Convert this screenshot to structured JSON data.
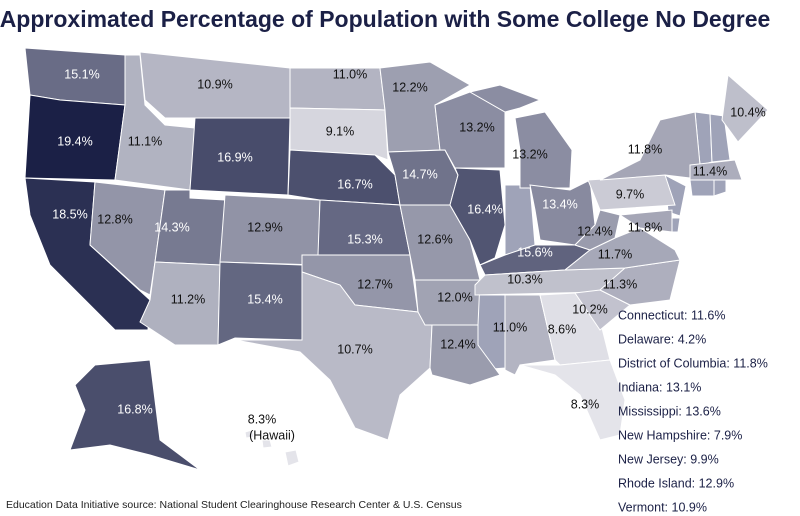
{
  "chart_data": {
    "type": "choropleth",
    "title": "Approximated Percentage of Population with Some College No Degree",
    "source": "Education Data Initiative source: National Student Clearinghouse Research Center & U.S. Census",
    "values": [
      15.1,
      19.4,
      18.5,
      11.1,
      12.8,
      10.9,
      16.9,
      14.3,
      11.2,
      12.9,
      15.4,
      11.0,
      9.1,
      16.7,
      15.3,
      12.7,
      10.7,
      12.2,
      14.7,
      12.6,
      12.0,
      12.4,
      13.2,
      16.4,
      13.2,
      13.4,
      15.6,
      10.3,
      11.0,
      8.6,
      8.3,
      10.2,
      11.3,
      11.7,
      12.4,
      11.8,
      9.7,
      11.8,
      10.4,
      11.4,
      16.8,
      8.3
    ],
    "value_labels": [
      "15.1%",
      "19.4%",
      "18.5%",
      "11.1%",
      "12.8%",
      "10.9%",
      "16.9%",
      "14.3%",
      "11.2%",
      "12.9%",
      "15.4%",
      "11.0%",
      "9.1%",
      "16.7%",
      "15.3%",
      "12.7%",
      "10.7%",
      "12.2%",
      "14.7%",
      "12.6%",
      "12.0%",
      "12.4%",
      "13.2%",
      "16.4%",
      "13.2%",
      "13.4%",
      "15.6%",
      "10.3%",
      "11.0%",
      "8.6%",
      "8.3%",
      "10.2%",
      "11.3%",
      "11.7%",
      "12.4%",
      "11.8%",
      "9.7%",
      "11.8%",
      "10.4%",
      "11.4%",
      "16.8%",
      "8.3%"
    ],
    "hawaii_label": "(Hawaii)",
    "color_range": [
      "#e4e4ea",
      "#1b2046"
    ],
    "notes": [
      "Connecticut: 11.6%",
      "Delaware: 4.2%",
      "District of Columbia: 11.8%",
      "Indiana: 13.1%",
      "Mississippi: 13.6%",
      "New Hampshire: 7.9%",
      "New Jersey: 9.9%",
      "Rhode Island: 12.9%",
      "Vermont: 10.9%"
    ]
  }
}
